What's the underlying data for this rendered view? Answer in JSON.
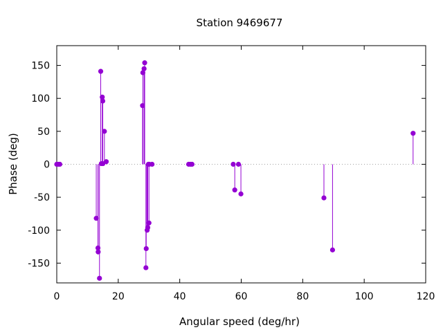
{
  "chart_data": {
    "type": "scatter",
    "style": "impulses-with-points",
    "title": "Station 9469677",
    "xlabel": "Angular speed (deg/hr)",
    "ylabel": "Phase (deg)",
    "xlim": [
      0,
      120
    ],
    "ylim": [
      -180,
      180
    ],
    "xticks": [
      0,
      20,
      40,
      60,
      80,
      100,
      120
    ],
    "yticks": [
      -150,
      -100,
      -50,
      0,
      50,
      100,
      150
    ],
    "zero_line": true,
    "grid": false,
    "color": "#9400d3",
    "series": [
      {
        "x": [
          0.0,
          0.04,
          0.08,
          0.5,
          1.0,
          12.85,
          13.4,
          13.47,
          13.9,
          14.3,
          14.5,
          14.8,
          14.96,
          15.0,
          15.5,
          16.1,
          27.9,
          28.0,
          28.4,
          28.6,
          29.0,
          29.1,
          29.4,
          29.6,
          29.8,
          30.0,
          30.1,
          31.0,
          42.9,
          43.5,
          44.0,
          57.4,
          57.9,
          59.1,
          59.9,
          86.9,
          89.7,
          115.9
        ],
        "y": [
          0,
          0,
          0,
          0,
          0,
          -82,
          -127,
          -133,
          -173,
          141,
          1,
          102,
          96,
          1,
          50,
          4,
          89,
          139,
          145,
          154,
          -157,
          -128,
          -100,
          -96,
          0,
          -89,
          0,
          0,
          0,
          0,
          0,
          0,
          -39,
          0,
          -45,
          -51,
          -130,
          47
        ]
      }
    ]
  }
}
